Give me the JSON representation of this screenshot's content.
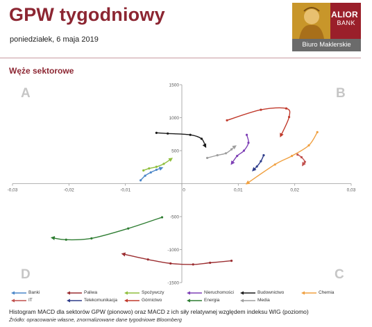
{
  "header": {
    "title": "GPW tygodniowy",
    "date": "poniedziałek, 6 maja 2019"
  },
  "logo": {
    "brand_line1": "ALIOR",
    "brand_line2": "BANK",
    "sub": "Biuro Maklerskie"
  },
  "section": {
    "title": "Węże sektorowe"
  },
  "chart_data": {
    "type": "line",
    "title": "",
    "xlabel": "",
    "ylabel": "",
    "xlim": [
      -0.03,
      0.03
    ],
    "ylim": [
      -1500,
      1500
    ],
    "x_ticks": [
      "-0,03",
      "-0,02",
      "-0,01",
      "0",
      "0,01",
      "0,02",
      "0,03"
    ],
    "y_ticks": [
      "1500",
      "1000",
      "500",
      "-500",
      "-1000",
      "-1500"
    ],
    "quadrants": [
      "A",
      "B",
      "C",
      "D"
    ],
    "legend_position": "bottom",
    "series": [
      {
        "name": "Banki",
        "color": "#4a86c8",
        "points": [
          [
            -0.0073,
            50
          ],
          [
            -0.0065,
            120
          ],
          [
            -0.0055,
            170
          ],
          [
            -0.0045,
            210
          ],
          [
            -0.0035,
            240
          ]
        ]
      },
      {
        "name": "IT",
        "color": "#c0504d",
        "points": [
          [
            0.0205,
            440
          ],
          [
            0.0212,
            400
          ],
          [
            0.0218,
            330
          ],
          [
            0.0214,
            280
          ]
        ]
      },
      {
        "name": "Paliwa",
        "color": "#9b2d30",
        "points": [
          [
            0.0088,
            -1170
          ],
          [
            0.005,
            -1200
          ],
          [
            0.002,
            -1225
          ],
          [
            -0.002,
            -1210
          ],
          [
            -0.006,
            -1150
          ],
          [
            -0.0105,
            -1065
          ]
        ]
      },
      {
        "name": "Telekomunikacja",
        "color": "#2e3c8a",
        "points": [
          [
            0.0145,
            430
          ],
          [
            0.014,
            340
          ],
          [
            0.0133,
            260
          ],
          [
            0.0126,
            200
          ]
        ]
      },
      {
        "name": "Spożywczy",
        "color": "#8fbe3c",
        "points": [
          [
            -0.0068,
            200
          ],
          [
            -0.0058,
            230
          ],
          [
            -0.0045,
            255
          ],
          [
            -0.0032,
            300
          ],
          [
            -0.0018,
            380
          ]
        ]
      },
      {
        "name": "Górnictwo",
        "color": "#c0392b",
        "points": [
          [
            0.008,
            960
          ],
          [
            0.014,
            1120
          ],
          [
            0.0185,
            1140
          ],
          [
            0.019,
            1010
          ],
          [
            0.0175,
            720
          ]
        ]
      },
      {
        "name": "Nieruchomości",
        "color": "#7d3fb5",
        "points": [
          [
            0.0115,
            740
          ],
          [
            0.0118,
            620
          ],
          [
            0.011,
            500
          ],
          [
            0.0098,
            420
          ],
          [
            0.0088,
            300
          ]
        ]
      },
      {
        "name": "Energia",
        "color": "#2e7d32",
        "points": [
          [
            -0.0035,
            -510
          ],
          [
            -0.0095,
            -680
          ],
          [
            -0.016,
            -830
          ],
          [
            -0.0205,
            -850
          ],
          [
            -0.023,
            -820
          ]
        ]
      },
      {
        "name": "Budownictwo",
        "color": "#1a1a1a",
        "points": [
          [
            -0.0045,
            770
          ],
          [
            -0.0025,
            760
          ],
          [
            0.0015,
            740
          ],
          [
            0.0035,
            680
          ],
          [
            0.0042,
            560
          ]
        ]
      },
      {
        "name": "Media",
        "color": "#9e9e9e",
        "points": [
          [
            0.0045,
            390
          ],
          [
            0.0063,
            430
          ],
          [
            0.0078,
            460
          ],
          [
            0.0088,
            520
          ],
          [
            0.0095,
            570
          ]
        ]
      },
      {
        "name": "Chemia",
        "color": "#f0a040",
        "points": [
          [
            0.024,
            780
          ],
          [
            0.0225,
            580
          ],
          [
            0.0195,
            420
          ],
          [
            0.0165,
            290
          ],
          [
            0.0115,
            0
          ]
        ]
      }
    ]
  },
  "notes": {
    "line1": "Histogram MACD dla sektorów GPW (pionowo) oraz MACD z ich siły relatywnej względem indeksu WIG (poziomo)",
    "line2": "Źródło: opracowanie własne, znormalizowane dane tygodniowe Bloomberg"
  }
}
